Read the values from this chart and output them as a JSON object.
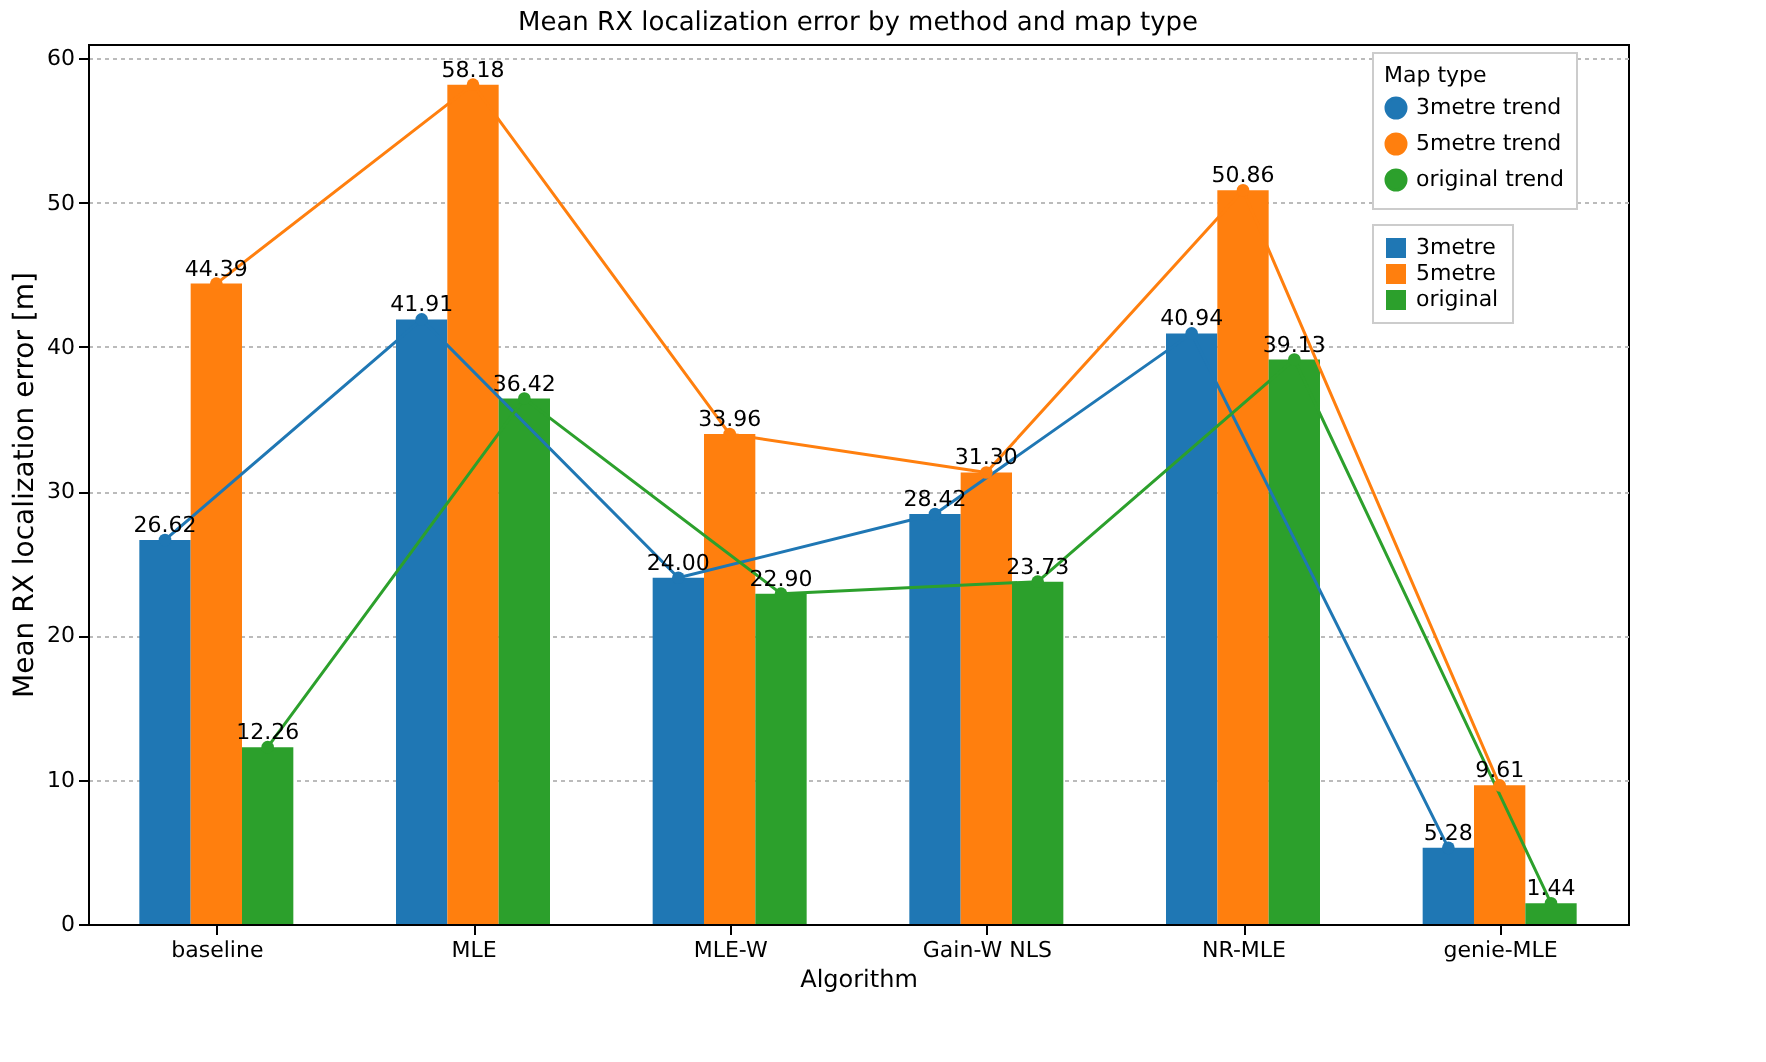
{
  "chart_data": {
    "type": "bar",
    "title": "Mean RX localization error by method and map type",
    "xlabel": "Algorithm",
    "ylabel": "Mean RX localization error [m]",
    "legend_title": "Map type",
    "legend": "top right",
    "grid": "y",
    "marker": "circle",
    "line_style": "solid",
    "categories": [
      "baseline",
      "MLE",
      "MLE-W",
      "Gain-W NLS",
      "NR-MLE",
      "genie-MLE"
    ],
    "ylim": [
      0,
      61
    ],
    "yticks": [
      0,
      10,
      20,
      30,
      40,
      50,
      60
    ],
    "series": [
      {
        "name": "3metre trend",
        "type": "line",
        "color": "#1f77b4",
        "values": [
          26.62,
          41.91,
          24.0,
          28.42,
          40.94,
          5.28
        ]
      },
      {
        "name": "5metre trend",
        "type": "line",
        "color": "#ff7f0e",
        "values": [
          44.39,
          58.18,
          33.96,
          31.3,
          50.86,
          9.61
        ]
      },
      {
        "name": "original trend",
        "type": "line",
        "color": "#2ca02c",
        "values": [
          12.26,
          36.42,
          22.9,
          23.73,
          39.13,
          1.44
        ]
      },
      {
        "name": "3metre",
        "color": "#1f77b4",
        "values": [
          26.62,
          41.91,
          24.0,
          28.42,
          40.94,
          5.28
        ],
        "value_labels": [
          "26.62",
          "41.91",
          "24.00",
          "28.42",
          "40.94",
          "5.28"
        ]
      },
      {
        "name": "5metre",
        "color": "#ff7f0e",
        "values": [
          44.39,
          58.18,
          33.96,
          31.3,
          50.86,
          9.61
        ],
        "value_labels": [
          "44.39",
          "58.18",
          "33.96",
          "31.30",
          "50.86",
          "9.61"
        ]
      },
      {
        "name": "original",
        "color": "#2ca02c",
        "values": [
          12.26,
          36.42,
          22.9,
          23.73,
          39.13,
          1.44
        ],
        "value_labels": [
          "12.26",
          "36.42",
          "22.90",
          "23.73",
          "39.13",
          "1.44"
        ]
      }
    ]
  }
}
